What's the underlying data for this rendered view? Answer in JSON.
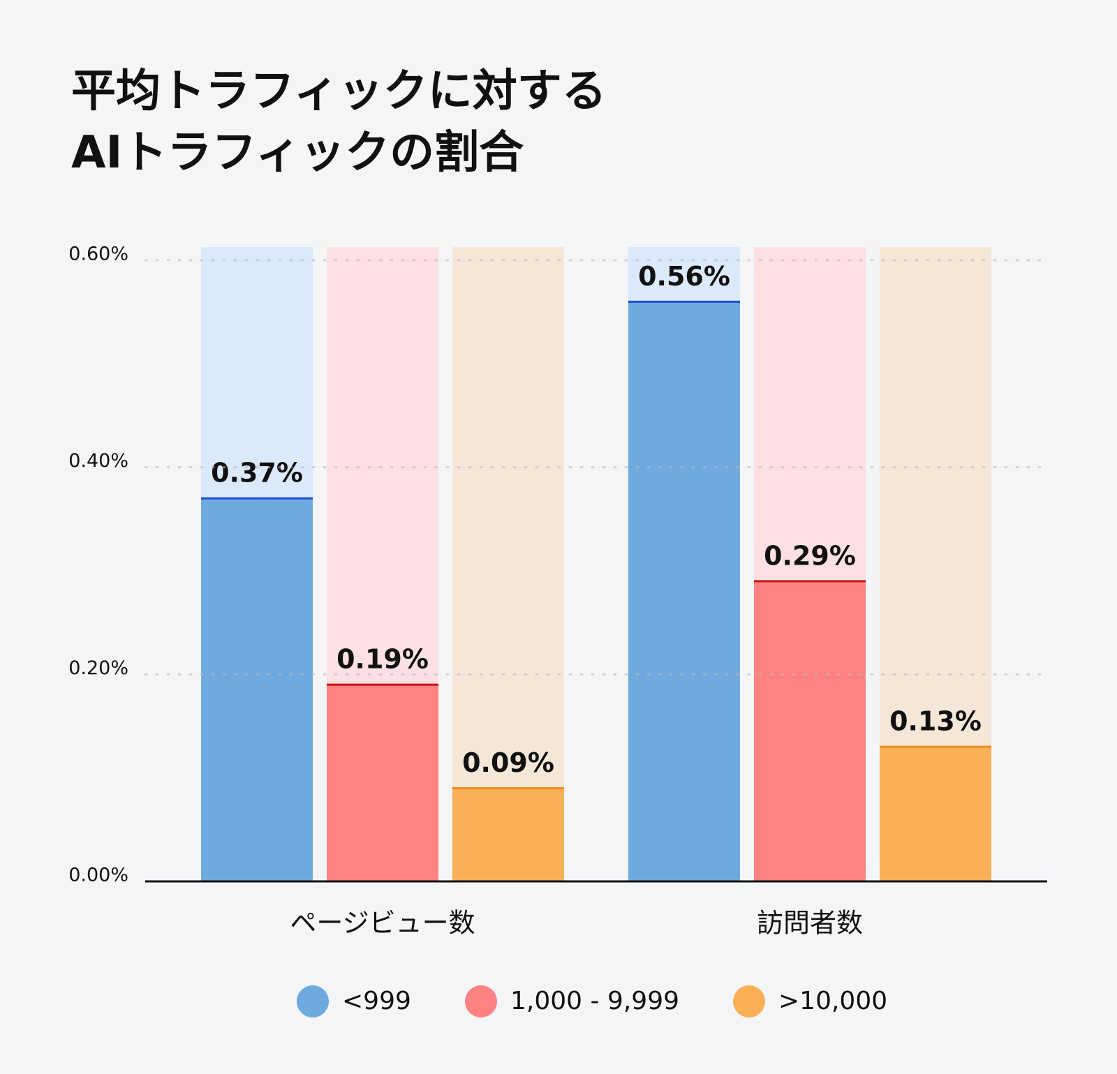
{
  "chart_data": {
    "type": "bar",
    "title": [
      "平均トラフィックに対する",
      "AIトラフィックの割合"
    ],
    "categories": [
      "ページビュー数",
      "訪問者数"
    ],
    "series": [
      {
        "name": "<999",
        "color": "#6eaae0",
        "track_color": "#dbeafa",
        "line_color": "#1a4fd1",
        "values": [
          0.37,
          0.56
        ],
        "value_labels": [
          "0.37%",
          "0.56%"
        ]
      },
      {
        "name": "1,000 - 9,999",
        "color": "#ff8282",
        "track_color": "#fde0e3",
        "line_color": "#cc1111",
        "values": [
          0.19,
          0.29
        ],
        "value_labels": [
          "0.19%",
          "0.29%"
        ]
      },
      {
        "name": ">10,000",
        "color": "#f9b057",
        "track_color": "#f5e7d8",
        "line_color": "#ef8c1a",
        "values": [
          0.09,
          0.13
        ],
        "value_labels": [
          "0.09%",
          "0.13%"
        ]
      }
    ],
    "ylim": [
      0,
      0.6
    ],
    "yticks": [
      {
        "value": 0,
        "label": "0.00%"
      },
      {
        "value": 0.2,
        "label": "0.20%"
      },
      {
        "value": 0.4,
        "label": "0.40%"
      },
      {
        "value": 0.6,
        "label": "0.60%"
      }
    ],
    "grid": true,
    "legend": "bottom"
  }
}
